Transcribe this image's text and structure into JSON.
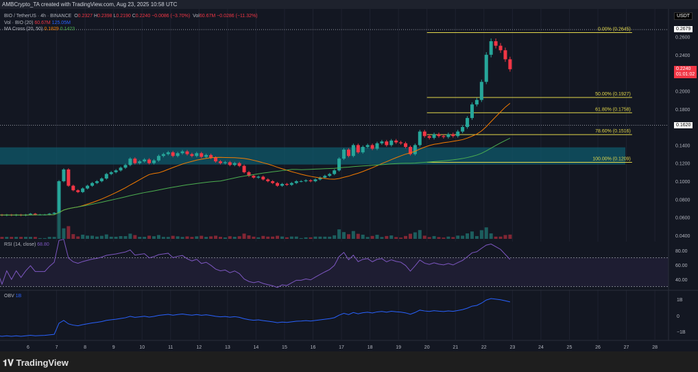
{
  "header": {
    "attribution": "AMBCrypto_TA created with TradingView.com, Aug 23, 2025 10:58 UTC"
  },
  "legend": {
    "symbol": "BIO / TetherUS · 4h · BINANCE",
    "o_label": "O",
    "o": "0.2327",
    "h_label": "H",
    "h": "0.2398",
    "l_label": "L",
    "l": "0.2190",
    "c_label": "C",
    "c": "0.2240",
    "change": "−0.0086 (−3.70%)",
    "vol_label": "Vol",
    "vol": "60.67M",
    "vol_change": "−0.0286 (−11.32%)",
    "vol_ind": "Vol · BIO (20)",
    "vol_v1": "60.67M",
    "vol_v2": "125.05M",
    "ma": "MA Cross (20, 50)",
    "ma_v1": "0.1829",
    "ma_v2": "0.1423"
  },
  "price_axis": {
    "currency": "USDT",
    "ticks": [
      "0.2600",
      "0.2400",
      "0.2000",
      "0.1800",
      "0.1400",
      "0.1200",
      "0.1000",
      "0.0800",
      "0.0600",
      "0.0400"
    ],
    "high_tag": "0.2679",
    "level_tag": "0.1620",
    "last_price": "0.2240",
    "countdown": "01:01:02"
  },
  "fib": [
    {
      "label": "0.00% (0.2645)",
      "price": 0.2645
    },
    {
      "label": "50.00% (0.1927)",
      "price": 0.1927
    },
    {
      "label": "61.80% (0.1758)",
      "price": 0.1758
    },
    {
      "label": "78.60% (0.1516)",
      "price": 0.1516
    },
    {
      "label": "100.00% (0.1209)",
      "price": 0.1209
    }
  ],
  "rsi": {
    "label": "RSI (14, close)",
    "value": "68.80",
    "ticks": [
      "80.00",
      "60.00",
      "40.00"
    ]
  },
  "obv": {
    "label": "OBV",
    "value": "1B",
    "ticks": [
      "1B",
      "0",
      "−1B"
    ]
  },
  "date_ticks": [
    "6",
    "7",
    "8",
    "9",
    "10",
    "11",
    "12",
    "13",
    "14",
    "15",
    "16",
    "17",
    "18",
    "19",
    "20",
    "21",
    "22",
    "23",
    "24",
    "25",
    "26",
    "27",
    "28"
  ],
  "footer": {
    "brand": "TradingView"
  },
  "colors": {
    "up": "#26a69a",
    "down": "#f23645",
    "ma20": "#f57c00",
    "ma50": "#4caf50",
    "fib": "#e3d84a",
    "zone": "#0f5a6b",
    "rsi": "#7e57c2",
    "obv": "#2962ff"
  },
  "chart_data": {
    "type": "candlestick",
    "timeframe": "4h",
    "ylim": [
      0.04,
      0.2679
    ],
    "zone": [
      0.1185,
      0.1375
    ],
    "closes_by_day": {
      "5": [
        0.063,
        0.062,
        0.063,
        0.062,
        0.063,
        0.062
      ],
      "6": [
        0.063,
        0.062,
        0.063,
        0.064,
        0.063,
        0.063
      ],
      "7": [
        0.063,
        0.064,
        0.065,
        0.1,
        0.113,
        0.095
      ],
      "8": [
        0.09,
        0.088,
        0.092,
        0.095,
        0.098,
        0.1
      ],
      "9": [
        0.103,
        0.108,
        0.11,
        0.112,
        0.115,
        0.118
      ],
      "10": [
        0.125,
        0.12,
        0.122,
        0.124,
        0.12,
        0.123
      ],
      "11": [
        0.128,
        0.13,
        0.132,
        0.128,
        0.131,
        0.133
      ],
      "12": [
        0.13,
        0.128,
        0.131,
        0.127,
        0.129,
        0.126
      ],
      "13": [
        0.122,
        0.12,
        0.121,
        0.118,
        0.12,
        0.117
      ],
      "14": [
        0.11,
        0.106,
        0.104,
        0.105,
        0.102,
        0.1
      ],
      "15": [
        0.098,
        0.095,
        0.097,
        0.096,
        0.098,
        0.1
      ],
      "16": [
        0.1,
        0.101,
        0.1,
        0.102,
        0.104,
        0.106
      ],
      "17": [
        0.108,
        0.112,
        0.125,
        0.135,
        0.128,
        0.14
      ],
      "18": [
        0.132,
        0.138,
        0.14,
        0.136,
        0.142,
        0.144
      ],
      "19": [
        0.14,
        0.145,
        0.143,
        0.142,
        0.138,
        0.13
      ],
      "20": [
        0.14,
        0.155,
        0.15,
        0.148,
        0.152,
        0.15
      ],
      "21": [
        0.149,
        0.152,
        0.15,
        0.155,
        0.16,
        0.17
      ],
      "22": [
        0.185,
        0.19,
        0.21,
        0.24,
        0.255,
        0.25
      ],
      "23": [
        0.245,
        0.235,
        0.224
      ]
    }
  }
}
